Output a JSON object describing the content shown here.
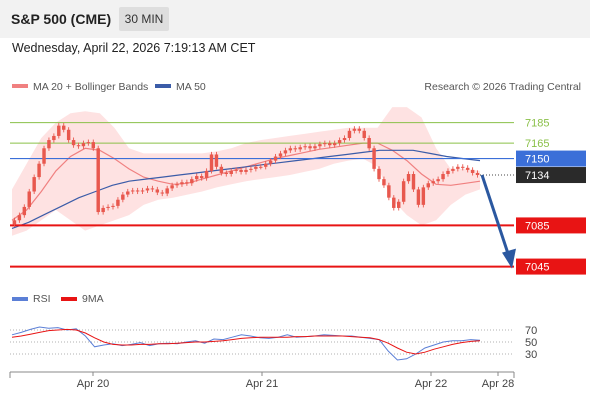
{
  "header": {
    "title": "S&P 500 (CME)",
    "timeframe": "30 MIN",
    "datetime": "Wednesday, April 22, 2026 7:19:13 AM CET"
  },
  "legend": {
    "ma20": "MA 20 + Bollinger Bands",
    "ma50": "MA 50",
    "copyright": "Research © 2026 Trading Central",
    "rsi": "RSI",
    "rsi_ma": "9MA"
  },
  "colors": {
    "candle": "#e8584e",
    "ma20": "#f08080",
    "bollinger": "#fdd8d8",
    "ma50": "#3b5ca8",
    "resistance": "#8ac048",
    "pivot": "#3b6fd8",
    "support": "#e81414",
    "price_tag": "#2a2a2a",
    "arrow": "#2b58a0",
    "rsi": "#5b7fd6",
    "rsi_ma": "#e81414"
  },
  "chart_data": {
    "type": "candlestick",
    "x_ticks": [
      "Apr 20",
      "Apr 21",
      "Apr 22",
      "Apr 28"
    ],
    "price_range": [
      7030,
      7205
    ],
    "levels": [
      {
        "label": "7185",
        "value": 7185,
        "kind": "resistance"
      },
      {
        "label": "7165",
        "value": 7165,
        "kind": "resistance"
      },
      {
        "label": "7150",
        "value": 7150,
        "kind": "pivot"
      },
      {
        "label": "7134",
        "value": 7134,
        "kind": "last_price"
      },
      {
        "label": "7085",
        "value": 7085,
        "kind": "support"
      },
      {
        "label": "7045",
        "value": 7045,
        "kind": "support"
      }
    ],
    "forecast": {
      "from": 7134,
      "to": 7045
    },
    "close_series": [
      7090,
      7095,
      7103,
      7118,
      7132,
      7145,
      7160,
      7168,
      7172,
      7182,
      7178,
      7168,
      7163,
      7162,
      7165,
      7166,
      7160,
      7098,
      7102,
      7103,
      7104,
      7110,
      7115,
      7118,
      7119,
      7118,
      7119,
      7121,
      7120,
      7117,
      7116,
      7121,
      7124,
      7125,
      7127,
      7126,
      7130,
      7133,
      7131,
      7138,
      7154,
      7142,
      7136,
      7135,
      7138,
      7139,
      7137,
      7139,
      7140,
      7142,
      7142,
      7145,
      7148,
      7152,
      7155,
      7158,
      7160,
      7159,
      7161,
      7162,
      7160,
      7162,
      7164,
      7165,
      7163,
      7165,
      7168,
      7170,
      7177,
      7179,
      7177,
      7170,
      7160,
      7140,
      7130,
      7124,
      7112,
      7102,
      7108,
      7128,
      7135,
      7120,
      7105,
      7122,
      7126,
      7128,
      7130,
      7135,
      7138,
      7140,
      7142,
      7141,
      7139,
      7136,
      7134
    ],
    "bollinger_upper": [
      7120,
      7145,
      7170,
      7185,
      7194,
      7196,
      7194,
      7180,
      7160,
      7155,
      7155,
      7155,
      7155,
      7155,
      7157,
      7160,
      7165,
      7168,
      7170,
      7172,
      7174,
      7176,
      7178,
      7180,
      7180,
      7180,
      7200,
      7200,
      7190,
      7160,
      7140,
      7140,
      7138
    ],
    "bollinger_lower": [
      7075,
      7080,
      7090,
      7100,
      7090,
      7080,
      7085,
      7090,
      7095,
      7105,
      7110,
      7112,
      7115,
      7118,
      7122,
      7125,
      7128,
      7130,
      7132,
      7134,
      7137,
      7140,
      7145,
      7148,
      7150,
      7142,
      7110,
      7095,
      7085,
      7090,
      7105,
      7115,
      7120
    ],
    "ma20_series": [
      7090,
      7100,
      7118,
      7138,
      7152,
      7160,
      7158,
      7150,
      7140,
      7132,
      7128,
      7125,
      7126,
      7130,
      7134,
      7138,
      7142,
      7146,
      7150,
      7153,
      7156,
      7159,
      7161,
      7163,
      7165,
      7165,
      7158,
      7148,
      7135,
      7125,
      7124,
      7126,
      7128
    ],
    "ma50_series": [
      7082,
      7088,
      7096,
      7104,
      7112,
      7118,
      7124,
      7128,
      7130,
      7132,
      7134,
      7136,
      7138,
      7140,
      7142,
      7144,
      7146,
      7148,
      7150,
      7152,
      7154,
      7156,
      7158,
      7158,
      7158,
      7155,
      7152,
      7150,
      7148
    ],
    "rsi": {
      "ticks": [
        70,
        50,
        30
      ],
      "range": [
        10,
        90
      ],
      "rsi_series": [
        62,
        66,
        71,
        75,
        73,
        74,
        70,
        72,
        60,
        42,
        45,
        47,
        44,
        46,
        49,
        44,
        47,
        48,
        47,
        50,
        52,
        48,
        55,
        54,
        58,
        62,
        60,
        57,
        56,
        58,
        62,
        58,
        59,
        60,
        62,
        61,
        60,
        60,
        58,
        56,
        54,
        35,
        20,
        22,
        30,
        40,
        45,
        50,
        52,
        52,
        54,
        53
      ],
      "ma_series": [
        58,
        60,
        63,
        66,
        69,
        70,
        71,
        70,
        65,
        57,
        50,
        46,
        45,
        45,
        46,
        46,
        47,
        47,
        48,
        49,
        50,
        50,
        51,
        52,
        54,
        56,
        57,
        58,
        58,
        58,
        58,
        59,
        59,
        60,
        60,
        60,
        60,
        59,
        58,
        57,
        54,
        48,
        40,
        33,
        30,
        33,
        38,
        42,
        46,
        49,
        51,
        52
      ]
    }
  }
}
